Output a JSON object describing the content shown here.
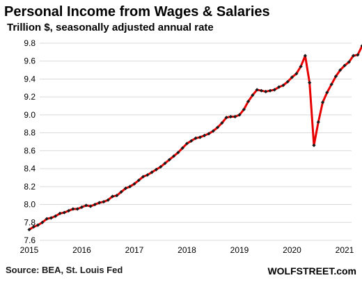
{
  "chart_data": {
    "type": "line",
    "title": "Personal Income from Wages & Salaries",
    "subtitle": "Trillion $, seasonally adjusted annual rate",
    "source": "Source: BEA, St. Louis Fed",
    "brand": "WOLFSTREET.com",
    "xlabel": "",
    "ylabel": "",
    "ylim": [
      7.6,
      9.8
    ],
    "yticks": [
      "9.8",
      "9.6",
      "9.4",
      "9.2",
      "9.0",
      "8.8",
      "8.6",
      "8.4",
      "8.2",
      "8.0",
      "7.8",
      "7.6"
    ],
    "xticks": [
      "2015",
      "2016",
      "2017",
      "2018",
      "2019",
      "2020",
      "2021"
    ],
    "grid": true,
    "line_color": "#e60000",
    "marker_color": "#1a1a1a",
    "grid_color": "#d9d9d9",
    "start": "2015-01",
    "frequency": "monthly",
    "values": [
      7.72,
      7.75,
      7.77,
      7.8,
      7.84,
      7.85,
      7.87,
      7.9,
      7.91,
      7.93,
      7.95,
      7.95,
      7.97,
      7.99,
      7.98,
      8.0,
      8.02,
      8.03,
      8.05,
      8.09,
      8.1,
      8.14,
      8.18,
      8.2,
      8.23,
      8.27,
      8.31,
      8.33,
      8.36,
      8.39,
      8.42,
      8.46,
      8.5,
      8.54,
      8.58,
      8.63,
      8.68,
      8.71,
      8.74,
      8.75,
      8.77,
      8.79,
      8.82,
      8.86,
      8.91,
      8.97,
      8.98,
      8.98,
      9.0,
      9.06,
      9.15,
      9.22,
      9.28,
      9.27,
      9.26,
      9.27,
      9.28,
      9.31,
      9.33,
      9.37,
      9.42,
      9.46,
      9.54,
      9.66,
      9.36,
      8.66,
      8.92,
      9.14,
      9.25,
      9.34,
      9.43,
      9.5,
      9.55,
      9.59,
      9.66,
      9.67,
      9.77
    ]
  }
}
